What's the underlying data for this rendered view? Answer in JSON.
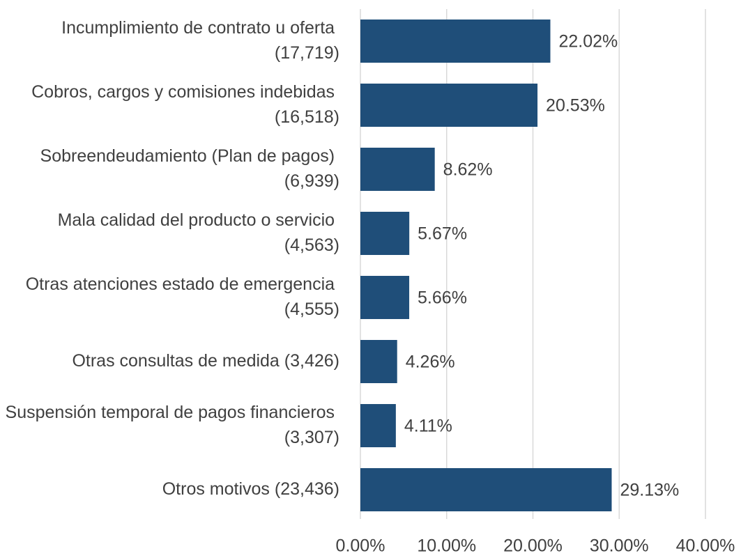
{
  "chart_data": {
    "type": "bar",
    "orientation": "horizontal",
    "categories": [
      "Incumplimiento de contrato u oferta (17,719)",
      "Cobros, cargos y comisiones indebidas (16,518)",
      "Sobreendeudamiento (Plan de pagos) (6,939)",
      "Mala calidad del producto o servicio (4,563)",
      "Otras atenciones estado de emergencia (4,555)",
      "Otras consultas de medida (3,426)",
      "Suspensión temporal de pagos financieros (3,307)",
      "Otros motivos (23,436)"
    ],
    "values": [
      22.02,
      20.53,
      8.62,
      5.67,
      5.66,
      4.26,
      4.11,
      29.13
    ],
    "value_labels": [
      "22.02%",
      "20.53%",
      "8.62%",
      "5.67%",
      "5.66%",
      "4.26%",
      "4.11%",
      "29.13%"
    ],
    "color": "#1f4e79",
    "xlim": [
      0,
      40
    ],
    "xticks": [
      {
        "value": 0,
        "label": "0.00%"
      },
      {
        "value": 10,
        "label": "10.00%"
      },
      {
        "value": 20,
        "label": "20.00%"
      },
      {
        "value": 30,
        "label": "30.00%"
      },
      {
        "value": 40,
        "label": "40.00%"
      }
    ],
    "grid": true
  }
}
